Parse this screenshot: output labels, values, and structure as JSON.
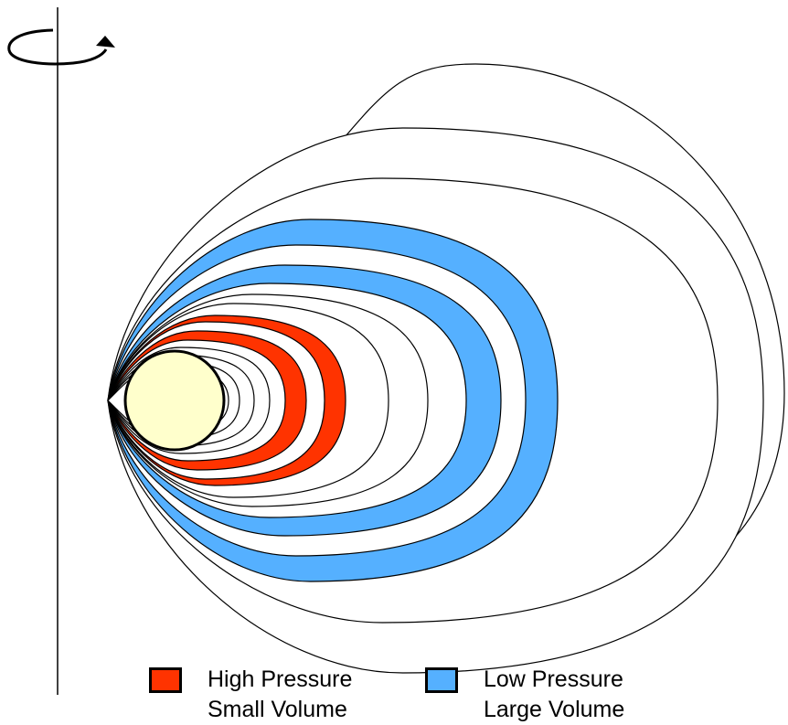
{
  "colors": {
    "high_pressure": "#ff3300",
    "low_pressure": "#55b0ff",
    "central_body": "#ffffcc",
    "line": "#000000",
    "background": "#ffffff"
  },
  "icons": {
    "rotation": "rotation-arrow-icon"
  },
  "legend": {
    "high": {
      "line1": "High Pressure",
      "line2": "Small Volume"
    },
    "low": {
      "line1": "Low Pressure",
      "line2": "Large Volume"
    }
  }
}
